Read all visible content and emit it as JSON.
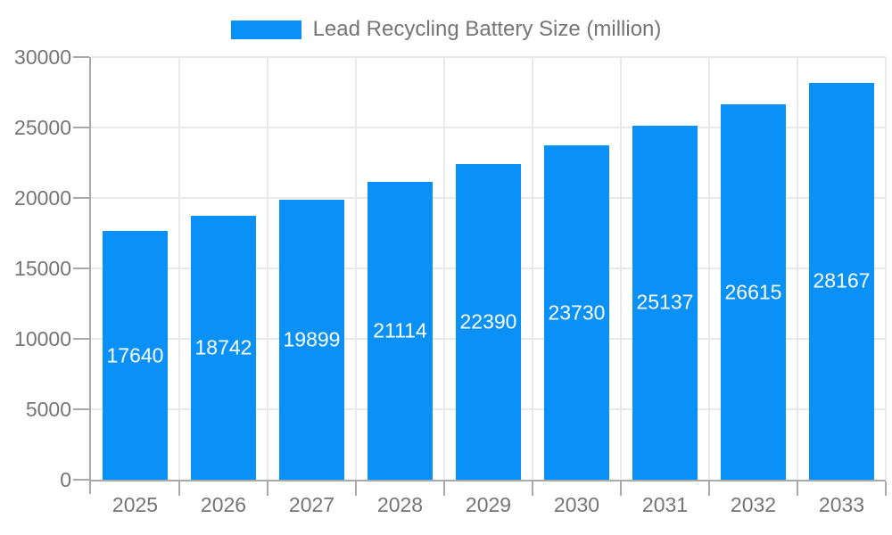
{
  "chart_data": {
    "type": "bar",
    "title": "Lead Recycling Battery Size (million)",
    "categories": [
      "2025",
      "2026",
      "2027",
      "2028",
      "2029",
      "2030",
      "2031",
      "2032",
      "2033"
    ],
    "values": [
      17640,
      18742,
      19899,
      21114,
      22390,
      23730,
      25137,
      26615,
      28167
    ],
    "bar_labels": [
      "17640",
      "18742",
      "19899",
      "21114",
      "22390",
      "23730",
      "25137",
      "26615",
      "28167"
    ],
    "xlabel": "",
    "ylabel": "",
    "ylim": [
      0,
      30000
    ],
    "y_ticks": [
      0,
      5000,
      10000,
      15000,
      20000,
      25000,
      30000
    ],
    "y_tick_labels": [
      "0",
      "5000",
      "10000",
      "15000",
      "20000",
      "25000",
      "30000"
    ],
    "grid": true,
    "legend_position": "top",
    "legend_entries": [
      "Lead Recycling Battery Size (million)"
    ],
    "colors": {
      "bar": "#0991f8",
      "bar_label": "#ffffff",
      "axis_line": "#a9a9a9",
      "gridline": "#e9e9e9",
      "tick_label": "#757575",
      "legend_text": "#757575",
      "background": "#ffffff"
    }
  }
}
